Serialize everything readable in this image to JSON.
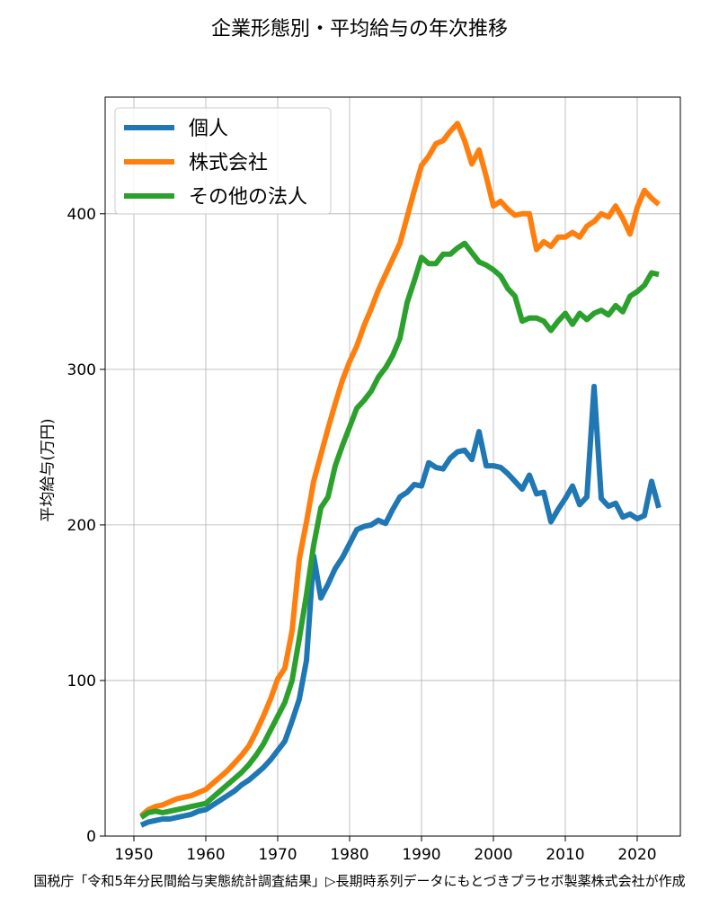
{
  "chart_data": {
    "type": "line",
    "title": "企業形態別・平均給与の年次推移",
    "xlabel": "",
    "ylabel": "平均給与(万円)",
    "source": "国税庁「令和5年分民間給与実態統計調査結果」▷長期時系列データにもとづきプラセボ製薬株式会社が作成",
    "xlim": [
      1946,
      2026
    ],
    "ylim": [
      0,
      475
    ],
    "xticks": [
      1950,
      1960,
      1970,
      1980,
      1990,
      2000,
      2010,
      2020
    ],
    "yticks": [
      0,
      100,
      200,
      300,
      400
    ],
    "grid": true,
    "legend_position": "top-left",
    "x": [
      1951,
      1952,
      1953,
      1954,
      1955,
      1956,
      1957,
      1958,
      1959,
      1960,
      1961,
      1962,
      1963,
      1964,
      1965,
      1966,
      1967,
      1968,
      1969,
      1970,
      1971,
      1972,
      1973,
      1974,
      1975,
      1976,
      1977,
      1978,
      1979,
      1980,
      1981,
      1982,
      1983,
      1984,
      1985,
      1986,
      1987,
      1988,
      1989,
      1990,
      1991,
      1992,
      1993,
      1994,
      1995,
      1996,
      1997,
      1998,
      1999,
      2000,
      2001,
      2002,
      2003,
      2004,
      2005,
      2006,
      2007,
      2008,
      2009,
      2010,
      2011,
      2012,
      2013,
      2014,
      2015,
      2016,
      2017,
      2018,
      2019,
      2020,
      2021,
      2022,
      2023
    ],
    "series": [
      {
        "name": "個人",
        "color": "#1f77b4",
        "values": [
          7,
          9,
          10,
          11,
          11,
          12,
          13,
          14,
          16,
          17,
          20,
          23,
          26,
          29,
          33,
          36,
          40,
          44,
          49,
          55,
          61,
          74,
          88,
          113,
          180,
          153,
          162,
          172,
          179,
          188,
          197,
          199,
          200,
          203,
          201,
          210,
          218,
          221,
          226,
          225,
          240,
          237,
          236,
          243,
          247,
          248,
          242,
          260,
          238,
          238,
          237,
          233,
          228,
          223,
          232,
          220,
          221,
          202,
          210,
          217,
          225,
          213,
          218,
          289,
          217,
          212,
          214,
          205,
          207,
          204,
          206,
          228,
          211
        ]
      },
      {
        "name": "株式会社",
        "color": "#ff7f0e",
        "values": [
          13,
          17,
          19,
          20,
          22,
          24,
          25,
          26,
          28,
          30,
          34,
          38,
          42,
          47,
          52,
          58,
          67,
          77,
          88,
          101,
          108,
          132,
          178,
          202,
          228,
          245,
          262,
          278,
          293,
          305,
          315,
          328,
          339,
          351,
          361,
          371,
          381,
          398,
          415,
          431,
          437,
          445,
          447,
          453,
          458,
          447,
          432,
          441,
          424,
          405,
          408,
          403,
          399,
          400,
          400,
          377,
          382,
          379,
          385,
          385,
          388,
          385,
          392,
          395,
          400,
          398,
          405,
          397,
          387,
          404,
          415,
          410,
          406
        ]
      },
      {
        "name": "その他の法人",
        "color": "#2ca02c",
        "values": [
          12,
          15,
          16,
          15,
          16,
          17,
          18,
          19,
          20,
          21,
          25,
          29,
          33,
          37,
          41,
          46,
          52,
          59,
          68,
          77,
          86,
          100,
          127,
          155,
          187,
          211,
          218,
          238,
          251,
          263,
          275,
          280,
          286,
          295,
          301,
          309,
          320,
          343,
          357,
          372,
          368,
          368,
          374,
          374,
          378,
          381,
          375,
          369,
          367,
          364,
          360,
          352,
          347,
          331,
          333,
          333,
          331,
          325,
          331,
          336,
          329,
          336,
          332,
          336,
          338,
          335,
          341,
          337,
          347,
          350,
          354,
          362,
          361
        ]
      }
    ]
  }
}
